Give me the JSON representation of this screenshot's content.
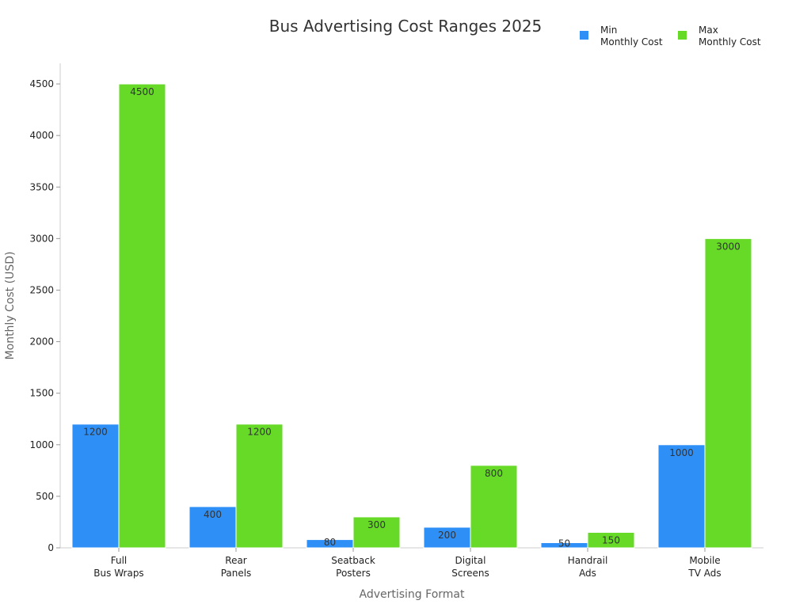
{
  "chart_data": {
    "type": "bar",
    "title": "Bus Advertising Cost Ranges 2025",
    "xlabel": "Advertising Format",
    "ylabel": "Monthly Cost (USD)",
    "ylim": [
      0,
      4700
    ],
    "yticks": [
      0,
      500,
      1000,
      1500,
      2000,
      2500,
      3000,
      3500,
      4000,
      4500
    ],
    "categories": [
      [
        "Full",
        "Bus Wraps"
      ],
      [
        "Rear",
        "Panels"
      ],
      [
        "Seatback",
        "Posters"
      ],
      [
        "Digital",
        "Screens"
      ],
      [
        "Handrail",
        "Ads"
      ],
      [
        "Mobile",
        "TV Ads"
      ]
    ],
    "series": [
      {
        "name": [
          "Min",
          "Monthly Cost"
        ],
        "color": "#2E8FF7",
        "values": [
          1200,
          400,
          80,
          200,
          50,
          1000
        ],
        "labels": [
          "1200",
          "400",
          "80",
          "200",
          "50",
          "1000"
        ]
      },
      {
        "name": [
          "Max",
          "Monthly Cost"
        ],
        "color": "#66DA26",
        "values": [
          4500,
          1200,
          300,
          800,
          150,
          3000
        ],
        "labels": [
          "4500",
          "1200",
          "300",
          "800",
          "150",
          "3000"
        ]
      }
    ],
    "legend": "top-right",
    "grid": false
  }
}
